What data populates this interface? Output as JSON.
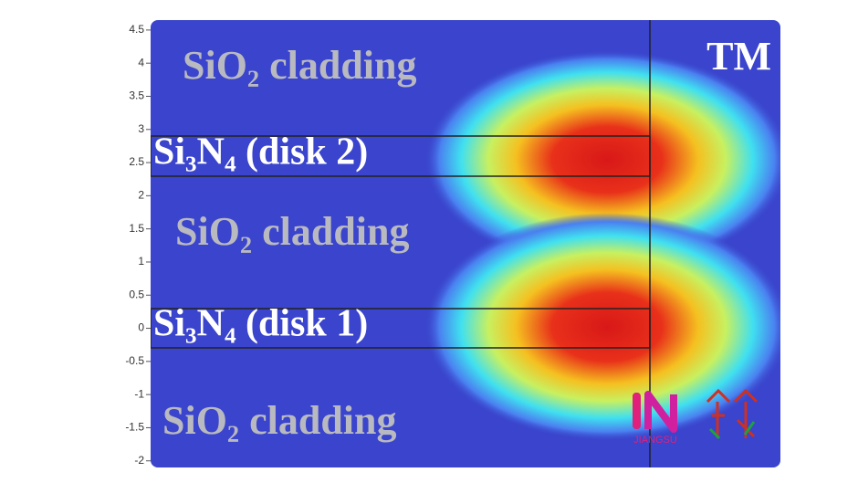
{
  "y_axis": {
    "ylim": [
      -2.1,
      4.65
    ],
    "ticks": [
      4.5,
      4,
      3.5,
      3,
      2.5,
      2,
      1.5,
      1,
      0.5,
      0,
      -0.5,
      -1,
      -1.5,
      -2
    ]
  },
  "labels": {
    "cladding_top": "SiO₂ cladding",
    "core_2": "Si₃N₄ (disk 2)",
    "cladding_mid": "SiO₂ cladding",
    "core_1": "Si₃N₄ (disk 1)",
    "cladding_bottom": "SiO₂ cladding",
    "polarization": "TM"
  },
  "watermark": "JIANGSU"
}
